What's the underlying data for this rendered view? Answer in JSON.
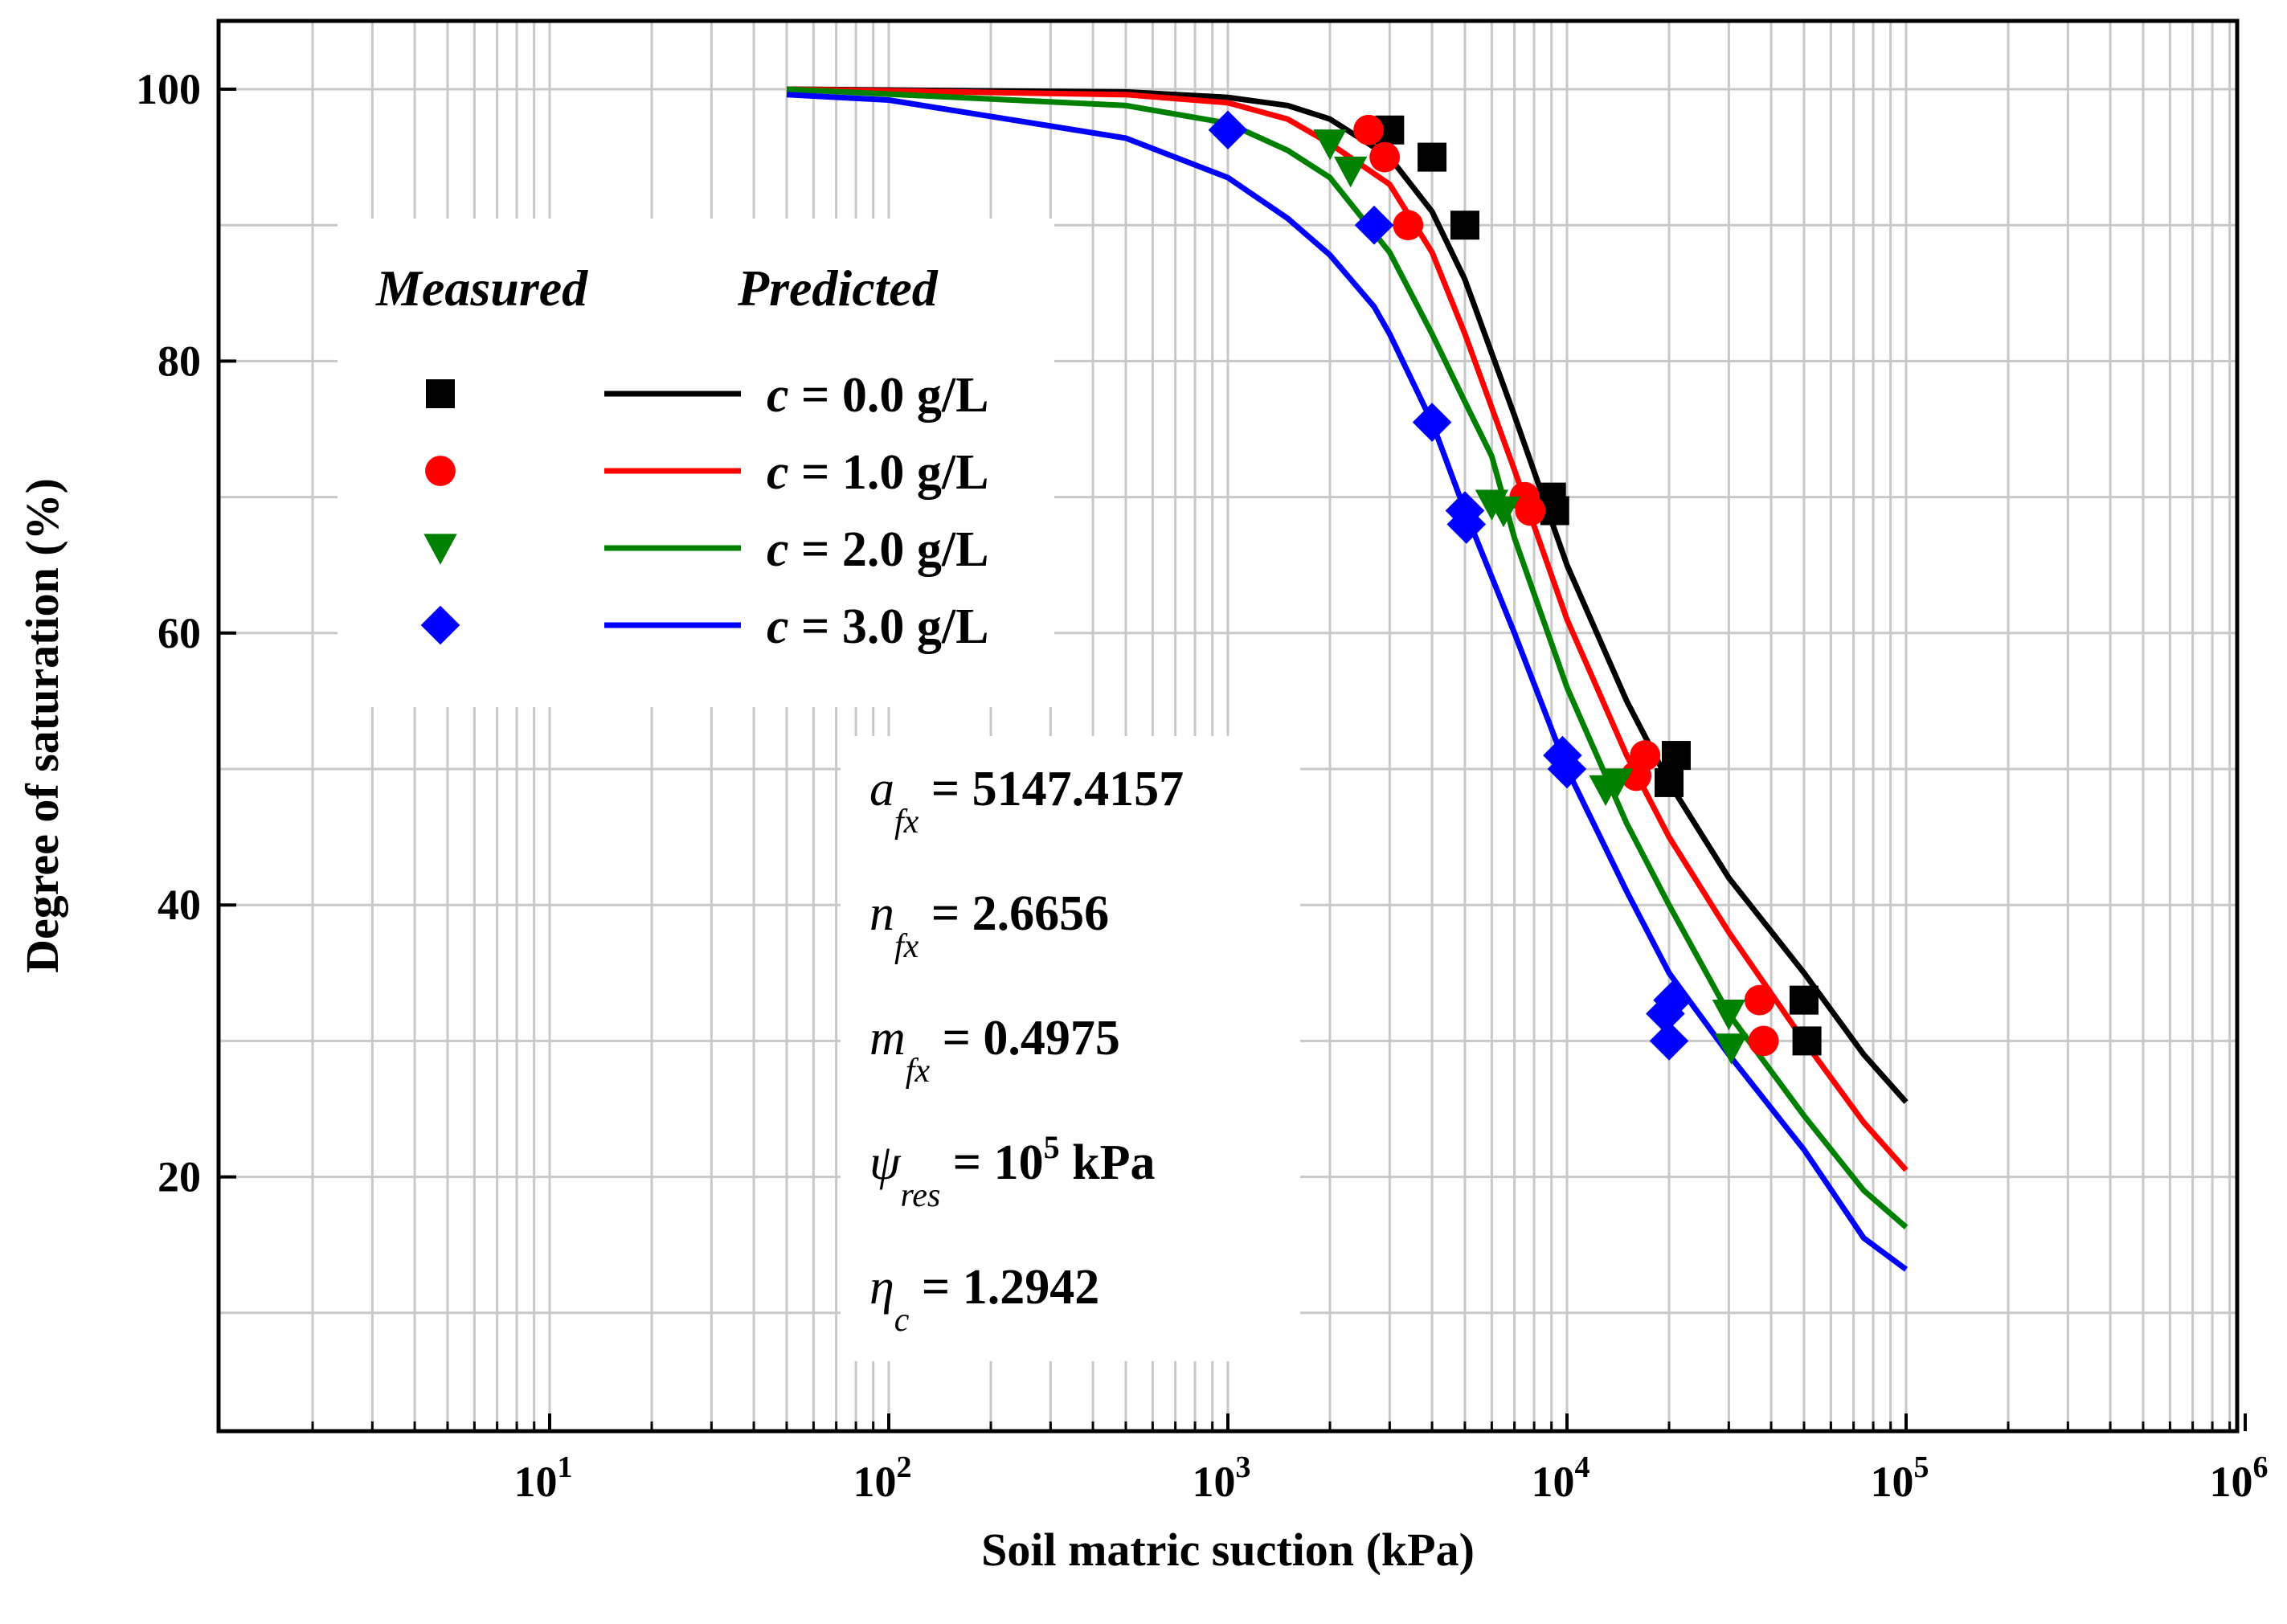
{
  "chart_data": {
    "type": "scatter",
    "title": "",
    "xlabel": "Soil matric suction (kPa)",
    "ylabel": "Degree of saturation (%)",
    "xscale": "log",
    "xlim": [
      1,
      1000000
    ],
    "ylim": [
      0,
      104
    ],
    "x_ticks": [
      {
        "value": 10,
        "base": "10",
        "exp": "1"
      },
      {
        "value": 100,
        "base": "10",
        "exp": "2"
      },
      {
        "value": 1000,
        "base": "10",
        "exp": "3"
      },
      {
        "value": 10000,
        "base": "10",
        "exp": "4"
      },
      {
        "value": 100000,
        "base": "10",
        "exp": "5"
      },
      {
        "value": 1000000,
        "base": "10",
        "exp": "6"
      }
    ],
    "y_ticks": [
      "20",
      "40",
      "60",
      "80",
      "100"
    ],
    "grid": true,
    "legend": {
      "measured_header": "Measured",
      "predicted_header": "Predicted",
      "placement": "upper-left"
    },
    "series": [
      {
        "name": "c = 0.0 g/L",
        "var": "c",
        "label_rest": " = 0.0 g/L",
        "color": "#000000",
        "marker": "square",
        "measured": [
          [
            3000,
            97
          ],
          [
            4000,
            95
          ],
          [
            5000,
            90
          ],
          [
            9000,
            70
          ],
          [
            9200,
            69
          ],
          [
            20000,
            49
          ],
          [
            21000,
            51
          ],
          [
            50000,
            33
          ],
          [
            51000,
            30
          ]
        ],
        "predicted": [
          [
            50,
            100
          ],
          [
            500,
            99.8
          ],
          [
            1000,
            99.4
          ],
          [
            1500,
            98.8
          ],
          [
            2000,
            97.8
          ],
          [
            3000,
            95
          ],
          [
            4000,
            91
          ],
          [
            5000,
            86
          ],
          [
            7000,
            76
          ],
          [
            10000,
            65
          ],
          [
            15000,
            55
          ],
          [
            20000,
            49
          ],
          [
            30000,
            42
          ],
          [
            50000,
            35
          ],
          [
            75000,
            29
          ],
          [
            100000,
            25.5
          ]
        ]
      },
      {
        "name": "c = 1.0 g/L",
        "var": "c",
        "label_rest": " = 1.0 g/L",
        "color": "#ff0000",
        "marker": "circle",
        "measured": [
          [
            2600,
            97
          ],
          [
            2900,
            95
          ],
          [
            3400,
            90
          ],
          [
            7500,
            70
          ],
          [
            7800,
            69
          ],
          [
            16000,
            49.5
          ],
          [
            17000,
            51
          ],
          [
            37000,
            33
          ],
          [
            38000,
            30
          ]
        ],
        "predicted": [
          [
            50,
            100
          ],
          [
            500,
            99.6
          ],
          [
            1000,
            99.0
          ],
          [
            1500,
            97.8
          ],
          [
            2000,
            96
          ],
          [
            3000,
            93
          ],
          [
            4000,
            88
          ],
          [
            5000,
            82
          ],
          [
            7000,
            72
          ],
          [
            10000,
            61
          ],
          [
            15000,
            51
          ],
          [
            20000,
            45
          ],
          [
            30000,
            38
          ],
          [
            50000,
            30
          ],
          [
            75000,
            24
          ],
          [
            100000,
            20.5
          ]
        ]
      },
      {
        "name": "c = 2.0 g/L",
        "var": "c",
        "label_rest": " = 2.0 g/L",
        "color": "#008000",
        "marker": "triangle-down",
        "measured": [
          [
            2000,
            96
          ],
          [
            2300,
            94
          ],
          [
            6000,
            69.5
          ],
          [
            6500,
            69
          ],
          [
            13000,
            48.5
          ],
          [
            14000,
            49
          ],
          [
            30000,
            32
          ],
          [
            30500,
            29.5
          ]
        ],
        "predicted": [
          [
            50,
            100
          ],
          [
            500,
            98.8
          ],
          [
            1000,
            97.5
          ],
          [
            1500,
            95.5
          ],
          [
            2000,
            93.5
          ],
          [
            3000,
            88
          ],
          [
            4000,
            82
          ],
          [
            5000,
            77
          ],
          [
            6000,
            73
          ],
          [
            7000,
            67
          ],
          [
            10000,
            56
          ],
          [
            15000,
            46
          ],
          [
            20000,
            40
          ],
          [
            30000,
            32
          ],
          [
            50000,
            24.5
          ],
          [
            75000,
            19
          ],
          [
            100000,
            16.3
          ]
        ]
      },
      {
        "name": "c = 3.0 g/L",
        "var": "c",
        "label_rest": " = 3.0 g/L",
        "color": "#0000ff",
        "marker": "diamond",
        "measured": [
          [
            1000,
            97
          ],
          [
            2700,
            90
          ],
          [
            4000,
            75.5
          ],
          [
            5000,
            69
          ],
          [
            5050,
            68
          ],
          [
            9700,
            51
          ],
          [
            10000,
            50
          ],
          [
            19500,
            32
          ],
          [
            20000,
            30
          ],
          [
            20500,
            33
          ]
        ],
        "predicted": [
          [
            50,
            99.6
          ],
          [
            100,
            99.2
          ],
          [
            500,
            96.4
          ],
          [
            1000,
            93.5
          ],
          [
            1500,
            90.5
          ],
          [
            2000,
            87.8
          ],
          [
            2700,
            84
          ],
          [
            3000,
            82
          ],
          [
            4000,
            75.5
          ],
          [
            5000,
            69
          ],
          [
            7000,
            60
          ],
          [
            10000,
            50
          ],
          [
            15000,
            41
          ],
          [
            20000,
            35
          ],
          [
            30000,
            29
          ],
          [
            50000,
            22
          ],
          [
            75000,
            15.5
          ],
          [
            100000,
            13.2
          ]
        ]
      }
    ],
    "annotation": {
      "lines": [
        {
          "sym": "a",
          "sub": "fx",
          "text": " = 5147.4157"
        },
        {
          "sym": "n",
          "sub": "fx",
          "text": " = 2.6656"
        },
        {
          "sym": "m",
          "sub": "fx",
          "text": " = 0.4975"
        },
        {
          "sym": "ψ",
          "sub": "res",
          "text": " = 10",
          "sup": "5",
          "tail": " kPa"
        },
        {
          "sym": "η",
          "sub": "c",
          "text": " = 1.2942"
        }
      ]
    }
  }
}
